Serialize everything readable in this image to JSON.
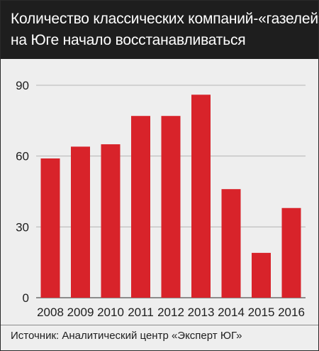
{
  "title_lines": [
    "Количество классических компаний-«газелей»",
    "на Юге начало восстанавливаться"
  ],
  "source": "Источник: Аналитический центр «Эксперт ЮГ»",
  "colors": {
    "bar": "#d8232a",
    "header_bg": "#1e1e1e",
    "background": "#eeeeee",
    "grid": "#b5b5b5"
  },
  "chart_data": {
    "type": "bar",
    "title": "Количество классических компаний-«газелей» на Юге начало восстанавливаться",
    "categories": [
      "2008",
      "2009",
      "2010",
      "2011",
      "2012",
      "2013",
      "2014",
      "2015",
      "2016"
    ],
    "values": [
      59,
      64,
      65,
      77,
      77,
      86,
      46,
      19,
      38
    ],
    "ylim": [
      0,
      90
    ],
    "yticks": [
      "0",
      "30",
      "60",
      "90"
    ],
    "grid": true,
    "legend": "none",
    "xlabel": "",
    "ylabel": ""
  }
}
